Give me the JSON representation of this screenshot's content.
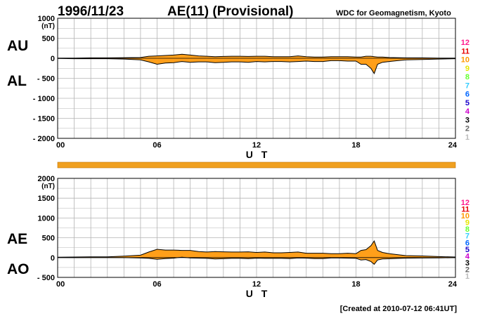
{
  "header": {
    "date": "1996/11/23",
    "title": "AE(11) (Provisional)",
    "institution": "WDC for Geomagnetism, Kyoto"
  },
  "footer": {
    "created": "[Created at 2010-07-12 06:41UT]"
  },
  "colors": {
    "fill": "#ff9f1a",
    "line": "#000000",
    "grid": "#b4b4b4",
    "coverage_bar": "#f0a020"
  },
  "chart_data": [
    {
      "type": "area",
      "panel": "AU/AL",
      "title": "",
      "xlabel": "U T",
      "unit_label": "(nT)",
      "series_labels": [
        "AU",
        "AL"
      ],
      "xlim": [
        0,
        24
      ],
      "ylim": [
        -2000,
        1000
      ],
      "x_ticks": [
        "00",
        "06",
        "12",
        "18",
        "24"
      ],
      "y_ticks": [
        "1000",
        "500",
        "0",
        "- 500",
        "- 1000",
        "- 1500",
        "- 2000"
      ],
      "grid": true,
      "x": [
        0,
        1,
        2,
        3,
        4,
        5,
        5.5,
        6,
        6.5,
        7,
        7.5,
        8,
        8.5,
        9,
        9.5,
        10,
        10.5,
        11,
        11.5,
        12,
        12.5,
        13,
        13.5,
        14,
        14.5,
        15,
        15.5,
        16,
        16.5,
        17,
        17.5,
        18,
        18.3,
        18.6,
        18.9,
        19.1,
        19.3,
        19.6,
        20,
        20.5,
        21,
        22,
        23,
        24
      ],
      "series": [
        {
          "name": "AU",
          "values": [
            5,
            5,
            10,
            10,
            15,
            20,
            50,
            60,
            70,
            80,
            100,
            80,
            60,
            50,
            40,
            45,
            50,
            50,
            45,
            50,
            50,
            40,
            40,
            40,
            60,
            40,
            30,
            30,
            40,
            40,
            40,
            30,
            30,
            50,
            50,
            40,
            30,
            30,
            20,
            15,
            10,
            10,
            5,
            5
          ]
        },
        {
          "name": "AL",
          "values": [
            -5,
            -10,
            -10,
            -10,
            -20,
            -40,
            -90,
            -150,
            -120,
            -110,
            -80,
            -100,
            -90,
            -90,
            -110,
            -100,
            -90,
            -90,
            -100,
            -80,
            -90,
            -80,
            -80,
            -90,
            -80,
            -70,
            -80,
            -80,
            -60,
            -60,
            -70,
            -70,
            -150,
            -150,
            -250,
            -380,
            -150,
            -100,
            -80,
            -60,
            -40,
            -30,
            -20,
            -10
          ]
        }
      ]
    },
    {
      "type": "area",
      "panel": "AE/AO",
      "title": "",
      "xlabel": "U T",
      "unit_label": "(nT)",
      "series_labels": [
        "AE",
        "AO"
      ],
      "xlim": [
        0,
        24
      ],
      "ylim": [
        -500,
        2000
      ],
      "x_ticks": [
        "00",
        "06",
        "12",
        "18",
        "24"
      ],
      "y_ticks": [
        "2000",
        "1500",
        "1000",
        "500",
        "0",
        "- 500"
      ],
      "grid": true,
      "x": [
        0,
        1,
        2,
        3,
        4,
        5,
        5.5,
        6,
        6.5,
        7,
        7.5,
        8,
        8.5,
        9,
        9.5,
        10,
        10.5,
        11,
        11.5,
        12,
        12.5,
        13,
        13.5,
        14,
        14.5,
        15,
        15.5,
        16,
        16.5,
        17,
        17.5,
        18,
        18.3,
        18.6,
        18.9,
        19.1,
        19.3,
        19.6,
        20,
        20.5,
        21,
        22,
        23,
        24
      ],
      "series": [
        {
          "name": "AE",
          "values": [
            10,
            15,
            20,
            20,
            35,
            60,
            140,
            210,
            190,
            190,
            180,
            180,
            150,
            140,
            150,
            145,
            140,
            140,
            145,
            130,
            140,
            120,
            120,
            130,
            140,
            110,
            110,
            110,
            100,
            100,
            110,
            100,
            180,
            200,
            300,
            420,
            180,
            130,
            100,
            75,
            50,
            40,
            25,
            15
          ]
        },
        {
          "name": "AO",
          "values": [
            0,
            -2,
            0,
            0,
            -2,
            -10,
            -20,
            -45,
            -25,
            -15,
            10,
            -10,
            -15,
            -20,
            -35,
            -28,
            -20,
            -20,
            -28,
            -15,
            -20,
            -20,
            -20,
            -25,
            -10,
            -15,
            -25,
            -25,
            -10,
            -10,
            -15,
            -20,
            -60,
            -50,
            -100,
            -170,
            -60,
            -35,
            -30,
            -22,
            -15,
            -10,
            -7,
            -2
          ]
        }
      ]
    }
  ],
  "coverage_bar": {
    "x": [
      0,
      24
    ]
  },
  "station_scale": [
    "12",
    "11",
    "10",
    "9",
    "8",
    "7",
    "6",
    "5",
    "4",
    "3",
    "2",
    "1"
  ],
  "station_colors": [
    "#ff1a8c",
    "#e60000",
    "#ff9900",
    "#e6e600",
    "#66ff33",
    "#33ccff",
    "#0066ff",
    "#1a00cc",
    "#cc00cc",
    "#000000",
    "#666666",
    "#bbbbbb"
  ]
}
